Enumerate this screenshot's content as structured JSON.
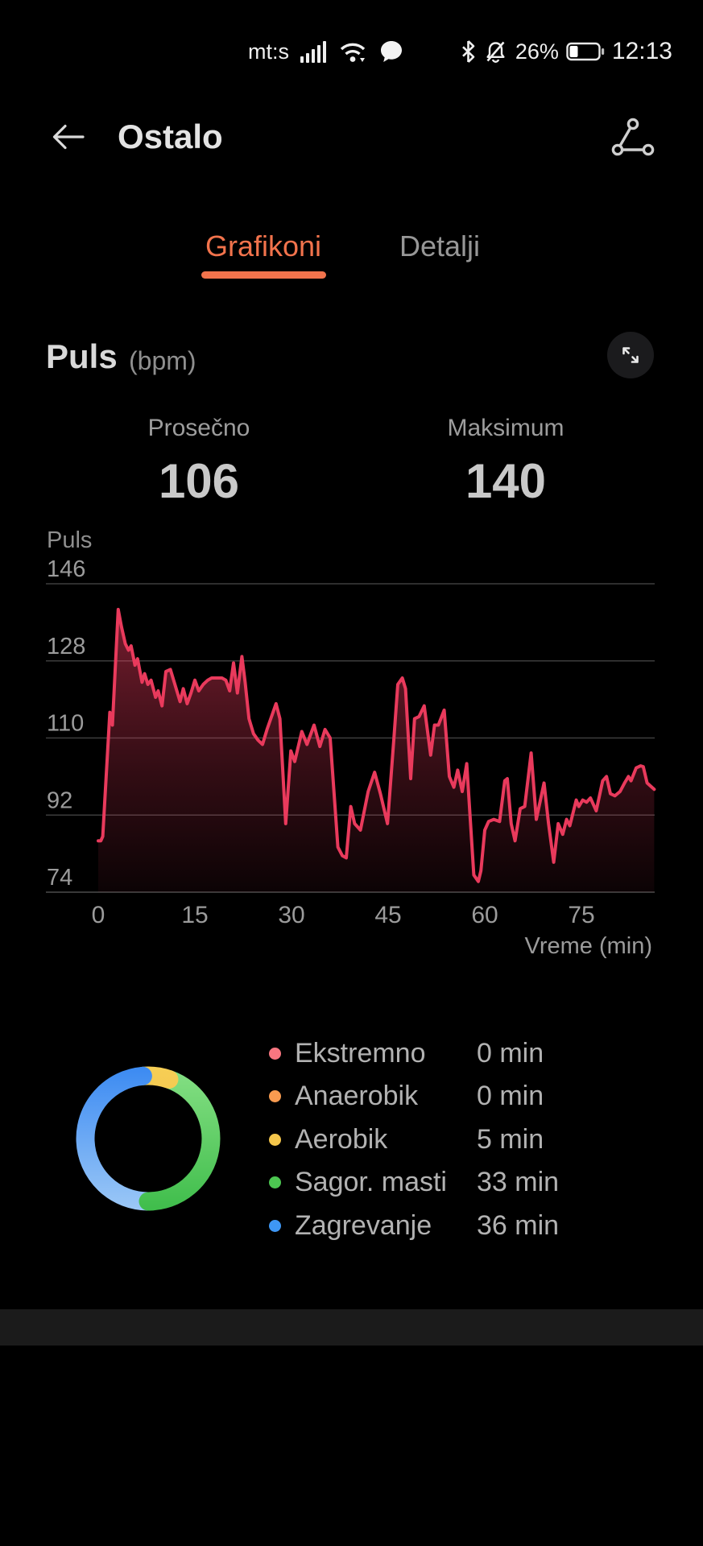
{
  "status_bar": {
    "carrier": "mt:s",
    "battery_percent": "26%",
    "time": "12:13"
  },
  "header": {
    "title": "Ostalo"
  },
  "tabs": [
    {
      "label": "Grafikoni",
      "active": true
    },
    {
      "label": "Detalji",
      "active": false
    }
  ],
  "accent_color": "#F2734C",
  "pulse_section": {
    "title": "Puls",
    "unit": "(bpm)",
    "stats": [
      {
        "label": "Prosečno",
        "value": "106"
      },
      {
        "label": "Maksimum",
        "value": "140"
      }
    ]
  },
  "chart_data": [
    {
      "type": "area",
      "title": "Puls",
      "ylabel": "Puls",
      "xlabel": "Vreme (min)",
      "x_ticks": [
        0,
        15,
        30,
        45,
        60,
        75
      ],
      "y_ticks": [
        146,
        128,
        110,
        92,
        74
      ],
      "xlim": [
        0,
        86.4
      ],
      "ylim": [
        74,
        146
      ],
      "grid": true,
      "line_color": "#E93A5C",
      "points": [
        [
          0,
          86
        ],
        [
          0.4,
          86
        ],
        [
          0.7,
          87
        ],
        [
          1.8,
          116
        ],
        [
          2.2,
          113
        ],
        [
          3.1,
          140
        ],
        [
          3.6,
          136
        ],
        [
          4.2,
          132
        ],
        [
          4.7,
          130.5
        ],
        [
          5.1,
          131.5
        ],
        [
          5.7,
          127
        ],
        [
          6.1,
          128.5
        ],
        [
          6.8,
          123
        ],
        [
          7.2,
          125
        ],
        [
          7.7,
          122.5
        ],
        [
          8.2,
          123.5
        ],
        [
          8.9,
          119.5
        ],
        [
          9.3,
          121
        ],
        [
          9.9,
          117.5
        ],
        [
          10.5,
          125.5
        ],
        [
          11.2,
          126
        ],
        [
          11.7,
          123.5
        ],
        [
          12.2,
          121
        ],
        [
          12.7,
          118.5
        ],
        [
          13.2,
          121.5
        ],
        [
          13.8,
          118
        ],
        [
          14.4,
          120.5
        ],
        [
          15,
          123.5
        ],
        [
          15.6,
          121
        ],
        [
          16.3,
          122.5
        ],
        [
          17,
          123.5
        ],
        [
          17.6,
          124
        ],
        [
          18.4,
          124
        ],
        [
          19.2,
          124
        ],
        [
          19.8,
          123.5
        ],
        [
          20.4,
          121
        ],
        [
          21,
          127.5
        ],
        [
          21.6,
          120.5
        ],
        [
          22.3,
          129
        ],
        [
          22.8,
          123
        ],
        [
          23.4,
          114.5
        ],
        [
          24.1,
          111
        ],
        [
          24.8,
          109.5
        ],
        [
          25.5,
          108.5
        ],
        [
          26.2,
          112
        ],
        [
          26.9,
          115
        ],
        [
          27.6,
          118
        ],
        [
          28.2,
          114.5
        ],
        [
          29.1,
          90
        ],
        [
          29.9,
          107
        ],
        [
          30.5,
          104.5
        ],
        [
          31.6,
          111.5
        ],
        [
          32.4,
          108.5
        ],
        [
          33.5,
          113
        ],
        [
          34.4,
          108
        ],
        [
          35.2,
          112
        ],
        [
          36,
          110
        ],
        [
          37.2,
          84.5
        ],
        [
          37.9,
          82.5
        ],
        [
          38.5,
          82
        ],
        [
          39.2,
          94
        ],
        [
          39.8,
          90
        ],
        [
          40.7,
          88.5
        ],
        [
          41.9,
          97.5
        ],
        [
          42.9,
          102
        ],
        [
          43.8,
          97
        ],
        [
          44.9,
          90
        ],
        [
          45.9,
          110
        ],
        [
          46.5,
          122.5
        ],
        [
          47.2,
          124
        ],
        [
          47.7,
          121.5
        ],
        [
          48.5,
          100.5
        ],
        [
          49.1,
          114.5
        ],
        [
          49.8,
          115
        ],
        [
          50.6,
          117.5
        ],
        [
          51.6,
          106
        ],
        [
          52.2,
          113
        ],
        [
          52.8,
          113
        ],
        [
          53.7,
          116.5
        ],
        [
          54.5,
          101
        ],
        [
          55.2,
          98.5
        ],
        [
          55.8,
          102.5
        ],
        [
          56.5,
          97.5
        ],
        [
          57.2,
          104
        ],
        [
          58.3,
          78
        ],
        [
          59,
          76.5
        ],
        [
          59.4,
          79
        ],
        [
          60,
          88.5
        ],
        [
          60.6,
          90.5
        ],
        [
          61.4,
          91
        ],
        [
          62.3,
          90.5
        ],
        [
          63.1,
          100
        ],
        [
          63.5,
          100.5
        ],
        [
          64.1,
          90
        ],
        [
          64.7,
          86
        ],
        [
          65.5,
          93.5
        ],
        [
          66.2,
          94
        ],
        [
          67.2,
          106.5
        ],
        [
          68,
          91
        ],
        [
          69.2,
          99.5
        ],
        [
          69.9,
          90
        ],
        [
          70.7,
          81
        ],
        [
          71.4,
          90
        ],
        [
          72.1,
          87.5
        ],
        [
          72.7,
          91
        ],
        [
          73.2,
          89.5
        ],
        [
          74.2,
          95.5
        ],
        [
          74.6,
          94
        ],
        [
          75.2,
          95.5
        ],
        [
          75.8,
          95
        ],
        [
          76.4,
          96
        ],
        [
          77.3,
          93
        ],
        [
          78.3,
          100
        ],
        [
          78.9,
          101
        ],
        [
          79.5,
          97
        ],
        [
          80.2,
          96.5
        ],
        [
          81,
          97.5
        ],
        [
          81.7,
          99.5
        ],
        [
          82.3,
          101
        ],
        [
          82.7,
          100
        ],
        [
          83.5,
          103
        ],
        [
          84.2,
          103.5
        ],
        [
          84.6,
          103.3
        ],
        [
          85.2,
          99.5
        ],
        [
          86.3,
          98
        ]
      ]
    },
    {
      "type": "donut",
      "legend_position": "right",
      "zones": [
        {
          "label": "Ekstremno",
          "minutes": 0,
          "value": "0 min",
          "color": "#F87680"
        },
        {
          "label": "Anaerobik",
          "minutes": 0,
          "value": "0 min",
          "color": "#F89B50"
        },
        {
          "label": "Aerobik",
          "minutes": 5,
          "value": "5 min",
          "color": "#F4C64B",
          "arc_colors": [
            "#F6CE55",
            "#EFBB42"
          ]
        },
        {
          "label": "Sagor. masti",
          "minutes": 33,
          "value": "33 min",
          "color": "#4CC751",
          "arc_colors": [
            "#86E085",
            "#3FBD4B"
          ]
        },
        {
          "label": "Zagrevanje",
          "minutes": 36,
          "value": "36 min",
          "color": "#3E97F5",
          "arc_colors": [
            "#3B8AF2",
            "#9CC8F6"
          ]
        }
      ],
      "arc_circle_order": [
        "Zagrevanje",
        "Aerobik",
        "Sagor. masti"
      ],
      "arc_draw_order": [
        "Sagor. masti",
        "Aerobik",
        "Zagrevanje"
      ],
      "end_cap_redraw": "Sagor. masti",
      "start_angle_deg": 180
    }
  ]
}
